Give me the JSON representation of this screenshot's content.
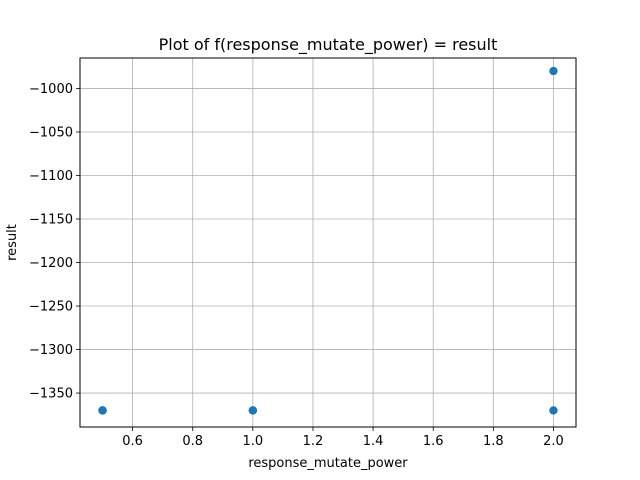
{
  "chart_data": {
    "type": "scatter",
    "title": "Plot of f(response_mutate_power) = result",
    "xlabel": "response_mutate_power",
    "ylabel": "result",
    "xlim": [
      0.425,
      2.075
    ],
    "ylim": [
      -1389,
      -965
    ],
    "xticks": [
      0.6,
      0.8,
      1.0,
      1.2,
      1.4,
      1.6,
      1.8,
      2.0
    ],
    "xtick_labels": [
      "0.6",
      "0.8",
      "1.0",
      "1.2",
      "1.4",
      "1.6",
      "1.8",
      "2.0"
    ],
    "yticks": [
      -1000,
      -1050,
      -1100,
      -1150,
      -1200,
      -1250,
      -1300,
      -1350
    ],
    "ytick_labels": [
      "−1000",
      "−1050",
      "−1100",
      "−1150",
      "−1200",
      "−1250",
      "−1300",
      "−1350"
    ],
    "grid": true,
    "points": [
      {
        "x": 0.5,
        "y": -1370
      },
      {
        "x": 0.5,
        "y": -1370
      },
      {
        "x": 0.5,
        "y": -1370
      },
      {
        "x": 1.0,
        "y": -1370
      },
      {
        "x": 1.0,
        "y": -1370
      },
      {
        "x": 2.0,
        "y": -1370
      },
      {
        "x": 2.0,
        "y": -980
      }
    ],
    "point_color": "#1f77b4",
    "grid_color": "#b0b0b0"
  }
}
